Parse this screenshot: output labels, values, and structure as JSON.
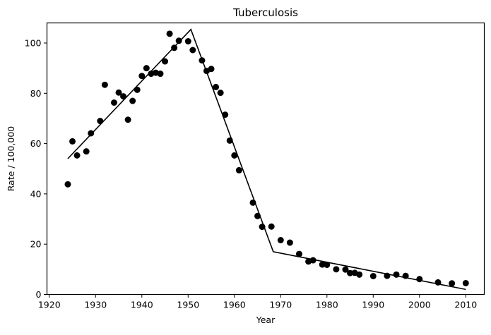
{
  "chart_data": {
    "type": "scatter",
    "title": "Tuberculosis",
    "xlabel": "Year",
    "ylabel": "Rate / 100,000",
    "xlim": [
      1919.5,
      2014.0
    ],
    "ylim": [
      0,
      108
    ],
    "xticks": [
      1920,
      1930,
      1940,
      1950,
      1960,
      1970,
      1980,
      1990,
      2000,
      2010
    ],
    "yticks": [
      0,
      20,
      40,
      60,
      80,
      100
    ],
    "xtick_labels": [
      "1920",
      "1930",
      "1940",
      "1950",
      "1960",
      "1970",
      "1980",
      "1990",
      "2000",
      "2010"
    ],
    "ytick_labels": [
      "0",
      "20",
      "40",
      "60",
      "80",
      "100"
    ],
    "grid": false,
    "points": [
      [
        1924,
        43.8
      ],
      [
        1925,
        60.9
      ],
      [
        1926,
        55.3
      ],
      [
        1928,
        56.9
      ],
      [
        1929,
        64.1
      ],
      [
        1931,
        69.0
      ],
      [
        1932,
        83.4
      ],
      [
        1934,
        76.3
      ],
      [
        1935,
        80.3
      ],
      [
        1936,
        78.8
      ],
      [
        1937,
        69.5
      ],
      [
        1938,
        77.0
      ],
      [
        1939,
        81.4
      ],
      [
        1940,
        86.9
      ],
      [
        1941,
        90.0
      ],
      [
        1942,
        87.8
      ],
      [
        1943,
        88.2
      ],
      [
        1944,
        87.8
      ],
      [
        1945,
        92.7
      ],
      [
        1946,
        103.7
      ],
      [
        1947,
        98.1
      ],
      [
        1948,
        100.9
      ],
      [
        1950,
        100.7
      ],
      [
        1951,
        97.2
      ],
      [
        1953,
        93.1
      ],
      [
        1954,
        88.9
      ],
      [
        1955,
        89.7
      ],
      [
        1956,
        82.5
      ],
      [
        1957,
        80.2
      ],
      [
        1958,
        71.5
      ],
      [
        1959,
        61.2
      ],
      [
        1960,
        55.3
      ],
      [
        1961,
        49.4
      ],
      [
        1964,
        36.5
      ],
      [
        1965,
        31.2
      ],
      [
        1966,
        26.9
      ],
      [
        1968,
        27.0
      ],
      [
        1970,
        21.6
      ],
      [
        1972,
        20.6
      ],
      [
        1974,
        16.1
      ],
      [
        1976,
        13.1
      ],
      [
        1977,
        13.6
      ],
      [
        1979,
        11.9
      ],
      [
        1980,
        11.8
      ],
      [
        1982,
        10.0
      ],
      [
        1984,
        9.9
      ],
      [
        1985,
        8.5
      ],
      [
        1986,
        8.6
      ],
      [
        1987,
        7.9
      ],
      [
        1990,
        7.3
      ],
      [
        1993,
        7.4
      ],
      [
        1995,
        7.9
      ],
      [
        1997,
        7.4
      ],
      [
        2000,
        6.1
      ],
      [
        2004,
        4.8
      ],
      [
        2007,
        4.4
      ],
      [
        2010,
        4.5
      ]
    ],
    "fit_line": [
      [
        1924,
        54.0
      ],
      [
        1950.6,
        105.4
      ],
      [
        1968.4,
        17.0
      ],
      [
        2010,
        2.0
      ]
    ],
    "marker_color": "#000000",
    "line_color": "#000000"
  }
}
